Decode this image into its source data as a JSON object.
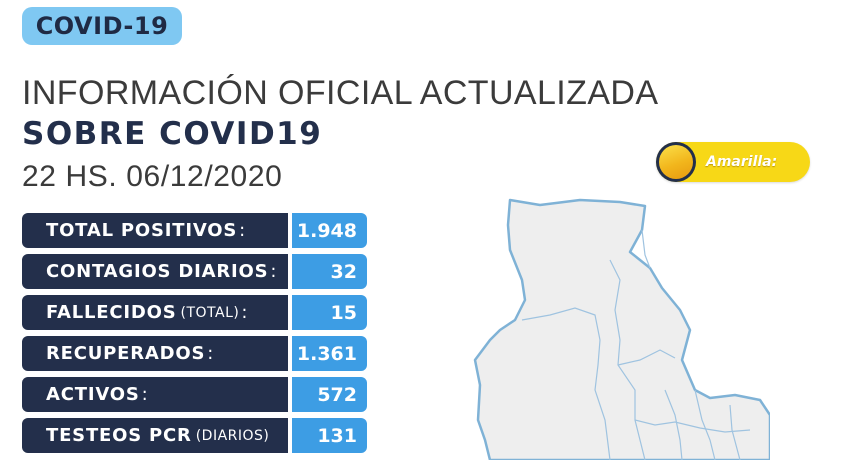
{
  "badge": "COVID-19",
  "heading": {
    "line1": "INFORMACIÓN OFICIAL ACTUALIZADA",
    "line2": "SOBRE COVID19",
    "date": "22 HS. 06/12/2020"
  },
  "stats": [
    {
      "label": "TOTAL POSITIVOS",
      "sub": "",
      "colon": ":",
      "value": "1.948"
    },
    {
      "label": "CONTAGIOS DIARIOS",
      "sub": "",
      "colon": ":",
      "value": "32"
    },
    {
      "label": "FALLECIDOS",
      "sub": "(TOTAL)",
      "colon": ":",
      "value": "15"
    },
    {
      "label": "RECUPERADOS",
      "sub": "",
      "colon": ":",
      "value": "1.361"
    },
    {
      "label": "ACTIVOS",
      "sub": "",
      "colon": ":",
      "value": "572"
    },
    {
      "label": "TESTEOS PCR",
      "sub": "(DIARIOS)",
      "colon": "",
      "value": "131"
    }
  ],
  "alert": {
    "label": "Amarilla:",
    "color": "#f7d817"
  },
  "colors": {
    "navy": "#232f4b",
    "blue": "#3d9de4",
    "light_blue": "#7fc8f2",
    "map_fill": "#eeeeee",
    "map_stroke": "#7fb2d6"
  }
}
